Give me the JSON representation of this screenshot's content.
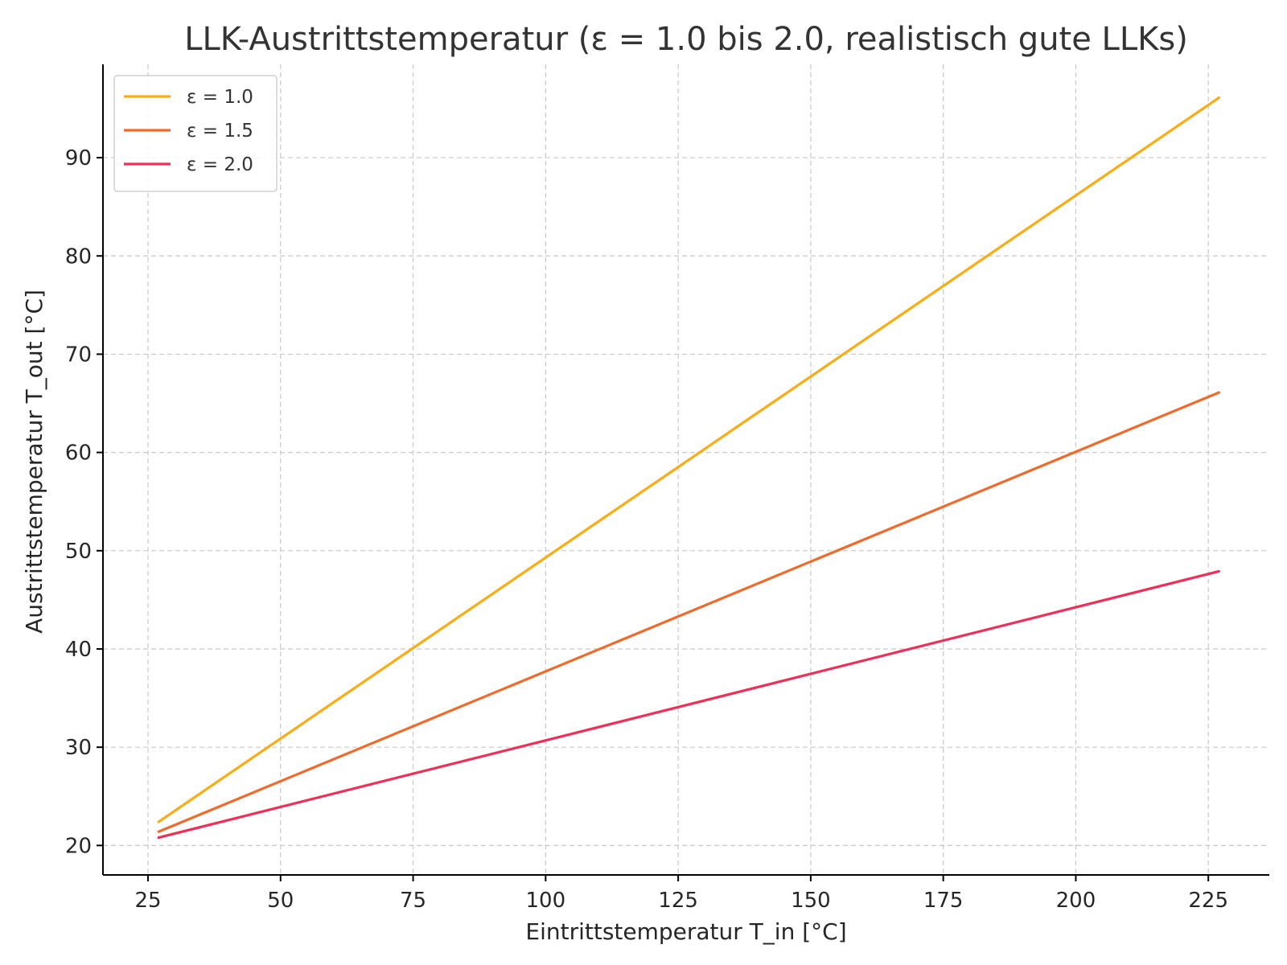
{
  "chart_data": {
    "type": "line",
    "title": "LLK-Austrittstemperatur (ε = 1.0 bis 2.0, realistisch gute LLKs)",
    "xlabel": "Eintrittstemperatur T_in [°C]",
    "ylabel": "Austrittstemperatur T_out [°C]",
    "xlim": [
      16.5,
      236.5
    ],
    "ylim": [
      17,
      99.5
    ],
    "xticks": [
      25,
      50,
      75,
      100,
      125,
      150,
      175,
      200,
      225
    ],
    "yticks": [
      20,
      30,
      40,
      50,
      60,
      70,
      80,
      90
    ],
    "grid": true,
    "legend_position": "top-left",
    "x": [
      27,
      227
    ],
    "series": [
      {
        "name": "ε = 1.0",
        "color": "#f9ac14",
        "values": [
          22.4,
          96.1
        ]
      },
      {
        "name": "ε = 1.5",
        "color": "#ee6b2c",
        "values": [
          21.4,
          66.1
        ]
      },
      {
        "name": "ε = 2.0",
        "color": "#ec3058",
        "values": [
          20.8,
          47.9
        ]
      }
    ]
  }
}
